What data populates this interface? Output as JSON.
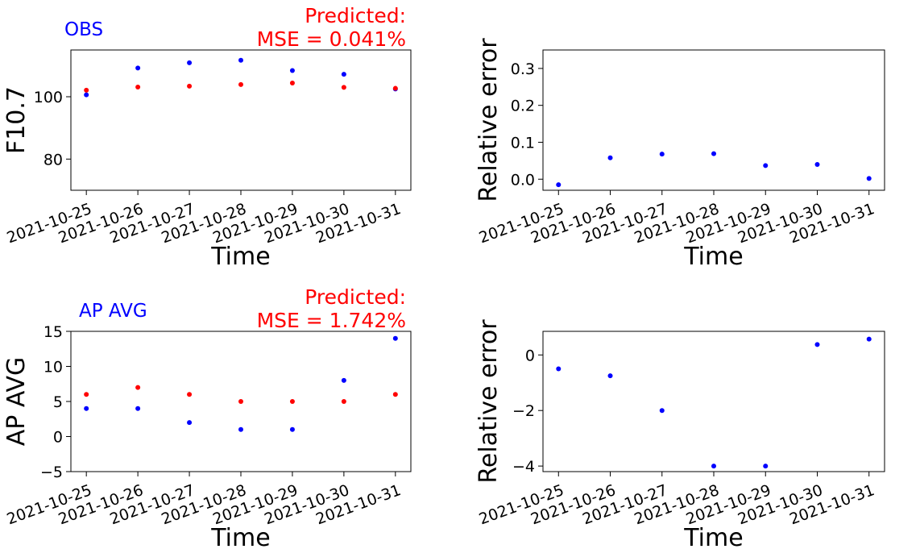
{
  "chart_data": [
    {
      "type": "scatter",
      "annotation_left": "OBS",
      "annotation_right_line1": "Predicted:",
      "annotation_right_line2": "MSE = 0.041%",
      "xlabel": "Time",
      "ylabel": "F10.7",
      "ylim": [
        70,
        115
      ],
      "yticks": [
        80,
        100
      ],
      "x": [
        "2021-10-25",
        "2021-10-26",
        "2021-10-27",
        "2021-10-28",
        "2021-10-29",
        "2021-10-30",
        "2021-10-31"
      ],
      "series": [
        {
          "color": "#0000ff",
          "values": [
            100.6,
            109.2,
            110.9,
            111.7,
            108.4,
            107.2,
            102.5
          ]
        },
        {
          "color": "#ff0000",
          "values": [
            102.1,
            103.1,
            103.4,
            103.9,
            104.4,
            103.0,
            102.7
          ]
        }
      ]
    },
    {
      "type": "scatter",
      "xlabel": "Time",
      "ylabel": "Relative error",
      "ylim": [
        -0.03,
        0.35
      ],
      "yticks": [
        0.0,
        0.1,
        0.2,
        0.3
      ],
      "ytick_labels": [
        "0.0",
        "0.1",
        "0.2",
        "0.3"
      ],
      "x": [
        "2021-10-25",
        "2021-10-26",
        "2021-10-27",
        "2021-10-28",
        "2021-10-29",
        "2021-10-30",
        "2021-10-31"
      ],
      "series": [
        {
          "color": "#0000ff",
          "values": [
            -0.015,
            0.058,
            0.068,
            0.069,
            0.037,
            0.04,
            0.002
          ]
        }
      ]
    },
    {
      "type": "scatter",
      "annotation_left": "AP AVG",
      "annotation_right_line1": "Predicted:",
      "annotation_right_line2": "MSE = 1.742%",
      "xlabel": "Time",
      "ylabel": "AP AVG",
      "ylim": [
        -5,
        15
      ],
      "yticks": [
        -5,
        0,
        5,
        10,
        15
      ],
      "ytick_labels": [
        "−5",
        "0",
        "5",
        "10",
        "15"
      ],
      "x": [
        "2021-10-25",
        "2021-10-26",
        "2021-10-27",
        "2021-10-28",
        "2021-10-29",
        "2021-10-30",
        "2021-10-31"
      ],
      "series": [
        {
          "color": "#0000ff",
          "values": [
            4,
            4,
            2,
            1,
            1,
            8,
            14
          ]
        },
        {
          "color": "#ff0000",
          "values": [
            6,
            7,
            6,
            5,
            5,
            5,
            6
          ]
        }
      ]
    },
    {
      "type": "scatter",
      "xlabel": "Time",
      "ylabel": "Relative error",
      "ylim": [
        -4.2,
        0.85
      ],
      "yticks": [
        -4,
        -2,
        0
      ],
      "ytick_labels": [
        "−4",
        "−2",
        "0"
      ],
      "x": [
        "2021-10-25",
        "2021-10-26",
        "2021-10-27",
        "2021-10-28",
        "2021-10-29",
        "2021-10-30",
        "2021-10-31"
      ],
      "series": [
        {
          "color": "#0000ff",
          "values": [
            -0.5,
            -0.75,
            -2.0,
            -4.0,
            -4.0,
            0.375,
            0.57
          ]
        }
      ]
    }
  ]
}
